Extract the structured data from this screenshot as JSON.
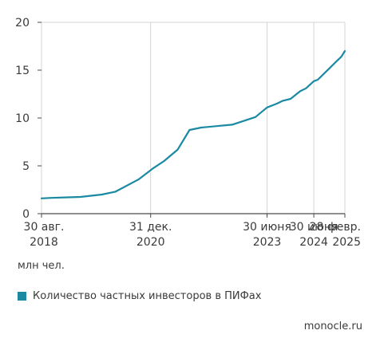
{
  "chart_data": {
    "type": "line",
    "title": "",
    "xlabel": "",
    "ylabel": "",
    "unit": "млн чел.",
    "ylim": [
      0,
      20
    ],
    "y_ticks": [
      0,
      5,
      10,
      15,
      20
    ],
    "grid": "vertical",
    "legend_position": "bottom-left",
    "x_ticks": [
      {
        "date": "2018-08-30",
        "line1": "30 авг.",
        "line2": "2018"
      },
      {
        "date": "2020-12-31",
        "line1": "31 дек.",
        "line2": "2020"
      },
      {
        "date": "2023-06-30",
        "line1": "30 июня",
        "line2": "2023"
      },
      {
        "date": "2024-06-30",
        "line1": "30 июня",
        "line2": "2024"
      },
      {
        "date": "2025-02-28",
        "line1": "28 февр.",
        "line2": "2025"
      }
    ],
    "series": [
      {
        "name": "Количество частных инвесторов в ПИФах",
        "color": "#1a8aa2",
        "points": [
          {
            "x": "2018-08-30",
            "y": 1.6
          },
          {
            "x": "2018-11-15",
            "y": 1.65
          },
          {
            "x": "2019-03-01",
            "y": 1.7
          },
          {
            "x": "2019-07-01",
            "y": 1.75
          },
          {
            "x": "2019-12-15",
            "y": 2.0
          },
          {
            "x": "2020-03-31",
            "y": 2.3
          },
          {
            "x": "2020-09-30",
            "y": 3.6
          },
          {
            "x": "2021-01-15",
            "y": 4.7
          },
          {
            "x": "2021-04-15",
            "y": 5.5
          },
          {
            "x": "2021-07-31",
            "y": 6.7
          },
          {
            "x": "2021-10-31",
            "y": 8.75
          },
          {
            "x": "2022-01-31",
            "y": 9.0
          },
          {
            "x": "2022-05-31",
            "y": 9.15
          },
          {
            "x": "2022-09-30",
            "y": 9.3
          },
          {
            "x": "2023-03-31",
            "y": 10.1
          },
          {
            "x": "2023-06-30",
            "y": 11.1
          },
          {
            "x": "2023-09-15",
            "y": 11.5
          },
          {
            "x": "2023-10-31",
            "y": 11.8
          },
          {
            "x": "2023-12-31",
            "y": 12.0
          },
          {
            "x": "2024-03-15",
            "y": 12.8
          },
          {
            "x": "2024-04-30",
            "y": 13.1
          },
          {
            "x": "2024-06-30",
            "y": 13.85
          },
          {
            "x": "2024-07-31",
            "y": 14.0
          },
          {
            "x": "2024-09-15",
            "y": 14.6
          },
          {
            "x": "2024-10-31",
            "y": 15.2
          },
          {
            "x": "2024-12-15",
            "y": 15.8
          },
          {
            "x": "2025-01-31",
            "y": 16.4
          },
          {
            "x": "2025-02-28",
            "y": 17.0
          }
        ]
      }
    ]
  },
  "legend": {
    "label": "Количество частных инвесторов в ПИФах",
    "color": "#1a8aa2"
  },
  "unit_label": "млн чел.",
  "source": "monocle.ru"
}
